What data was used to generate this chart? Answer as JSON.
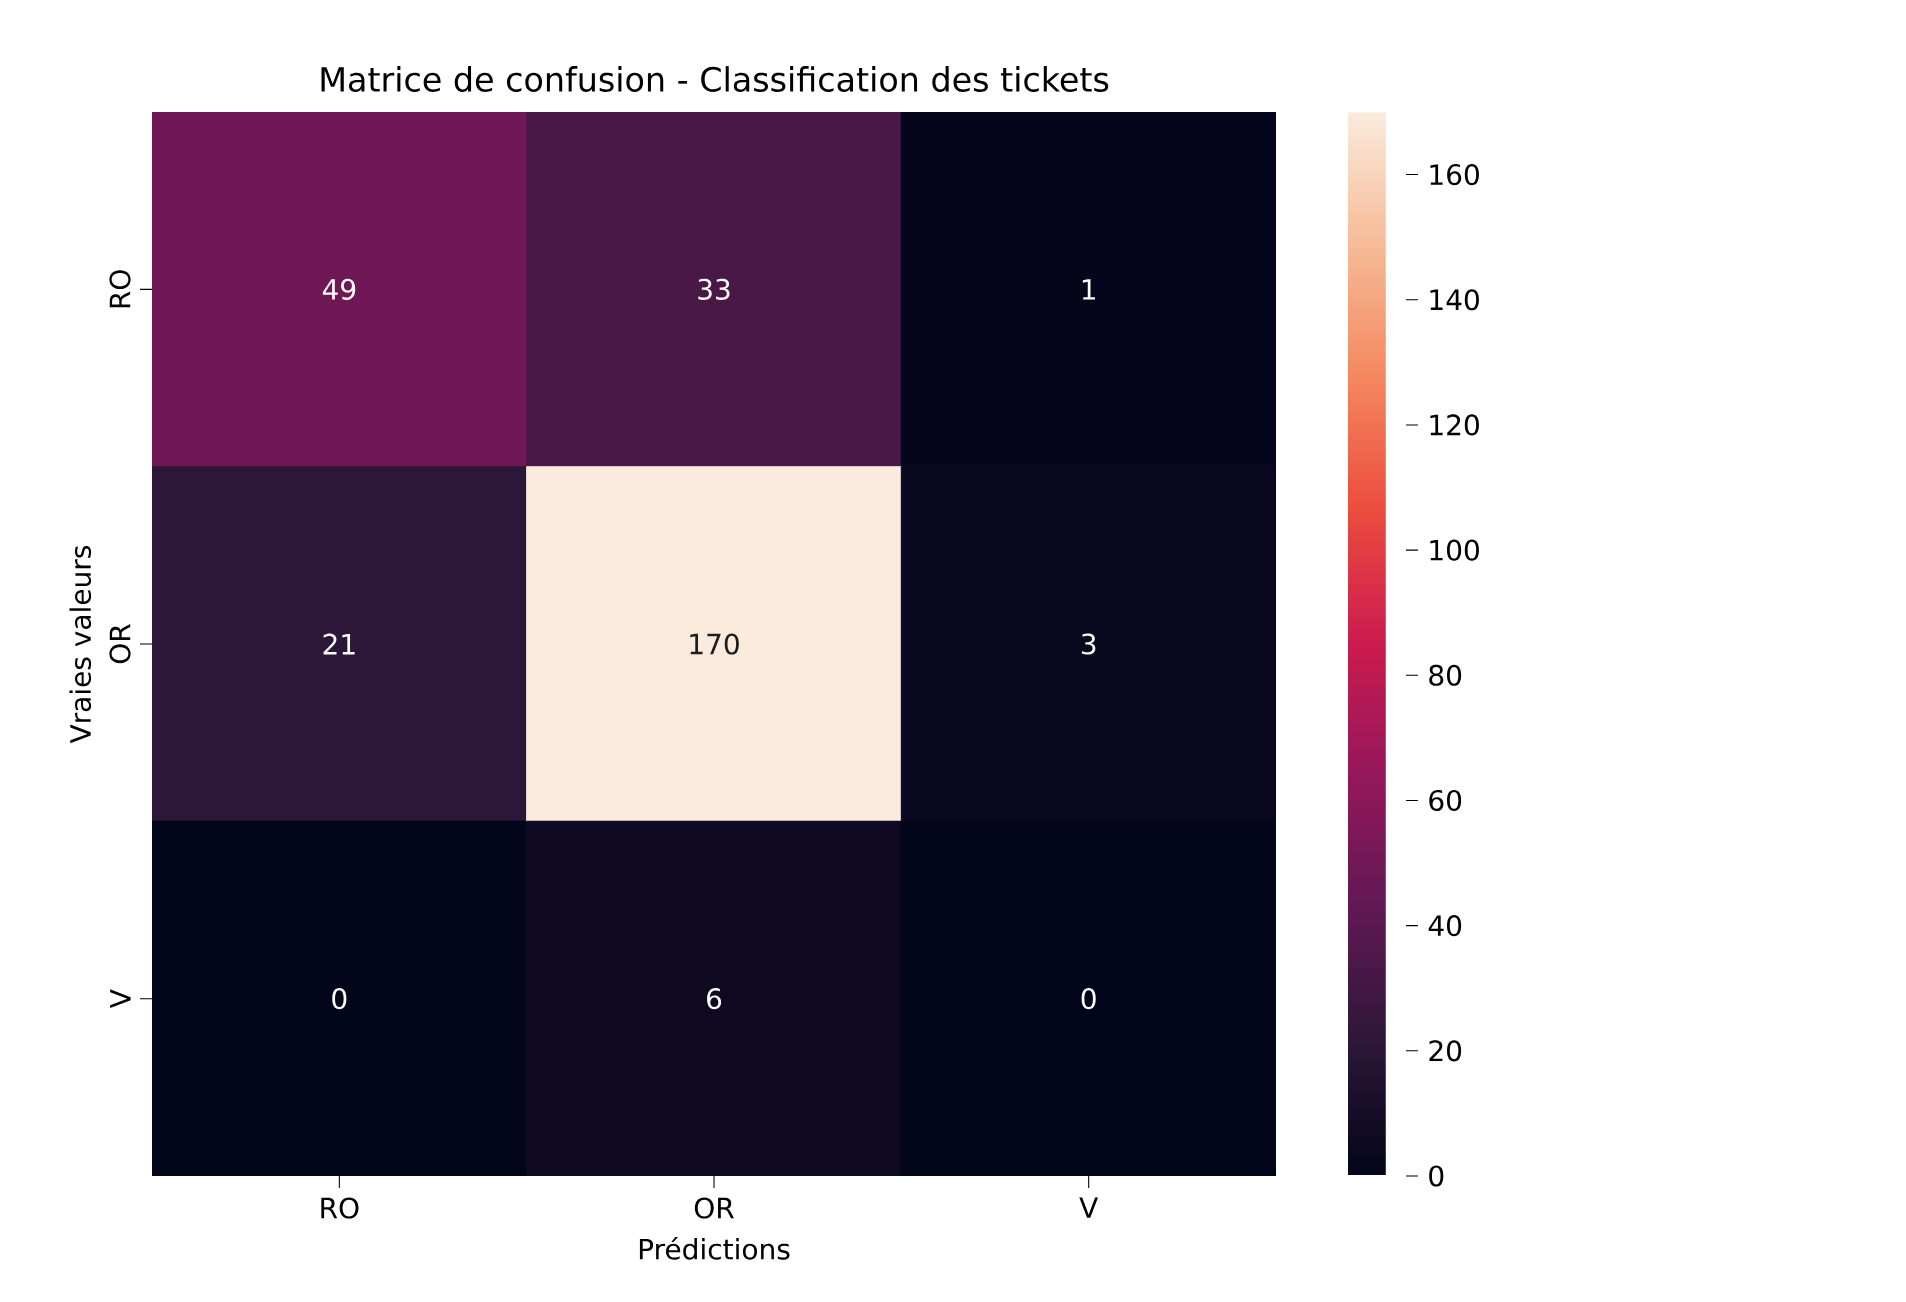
{
  "chart_data": {
    "type": "heatmap",
    "title": "Matrice de confusion - Classification des tickets",
    "xlabel": "Prédictions",
    "ylabel": "Vraies valeurs",
    "categories": [
      "RO",
      "OR",
      "V"
    ],
    "y_categories": [
      "RO",
      "OR",
      "V"
    ],
    "cells": [
      [
        49,
        33,
        1
      ],
      [
        21,
        170,
        3
      ],
      [
        0,
        6,
        0
      ]
    ],
    "data_labels": true,
    "clim": [
      0,
      170
    ],
    "cticks": [
      0,
      20,
      40,
      60,
      80,
      100,
      120,
      140,
      160
    ]
  }
}
